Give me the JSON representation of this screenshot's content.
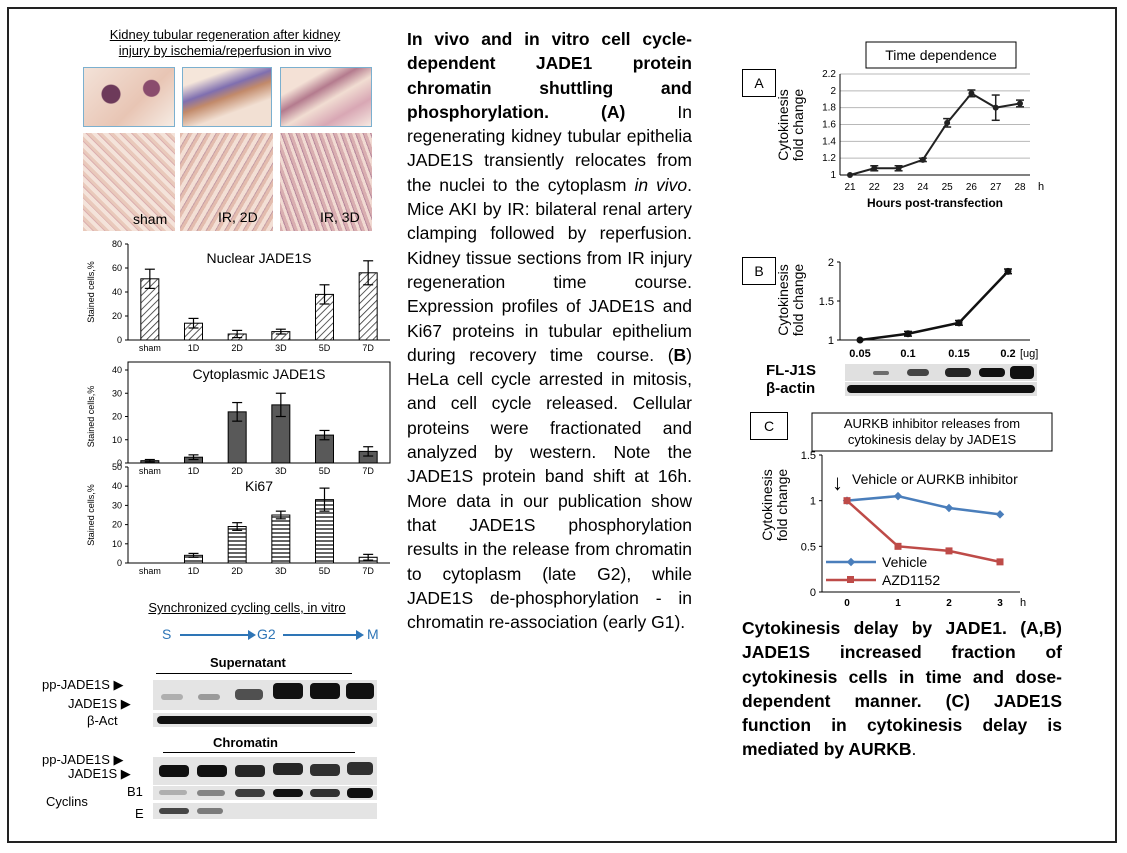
{
  "left": {
    "kidney_heading_line1": "Kidney tubular regeneration after kidney",
    "kidney_heading_line2": "injury by ischemia/reperfusion in vivo",
    "tissue_labels": [
      "sham",
      "IR, 2D",
      "IR, 3D"
    ],
    "sync_heading": "Synchronized cycling cells, in vitro",
    "phase_s": "S",
    "phase_g2": "G2",
    "phase_m": "M",
    "supernatant_label": "Supernatant",
    "chromatin_label": "Chromatin",
    "blot_labels": {
      "pp1": "pp-JADE1S",
      "j1": "JADE1S",
      "bact": "β-Act",
      "pp2": "pp-JADE1S",
      "j2": "JADE1S",
      "cyclins": "Cyclins",
      "b1": "B1",
      "e": "E"
    },
    "arrow_glyph": "▶"
  },
  "middle": {
    "title": "In vivo and in vitro cell cycle-dependent JADE1 protein chromatin shuttling and phosphorylation.",
    "a_open": "(A)",
    "a_text": "In regenerating kidney tubular epithelia JADE1S transiently relocates from the nuclei to the cytoplasm",
    "in_vivo": "in vivo",
    "a_text2": ". Mice AKI by IR: bilateral renal artery clamping followed by reperfusion. Kidney tissue sections from IR injury regeneration time course. Expression profiles of JADE1S and Ki67 proteins in tubular epithelium during recovery time course. (",
    "b_letter": "B",
    "b_text": ") HeLa cell cycle arrested in mitosis, and cell cycle released. Cellular proteins were fractionated and analyzed by western. Note the JADE1S protein band shift at 16h. More data in our publication show that JADE1S phosphorylation results in the release from chromatin to cytoplasm (late G2), while JADE1S de-phosphorylation - in chromatin re-association (early G1)."
  },
  "right": {
    "panel_a_letter": "A",
    "panel_b_letter": "B",
    "panel_c_letter": "C",
    "blot_fl": "FL-J1S",
    "blot_actin": "β-actin",
    "c_annotation": "Vehicle or AURKB inhibitor",
    "down_arrow": "↓",
    "caption_1": "Cytokinesis delay by JADE1. (",
    "caption_ab": "A,B",
    "caption_2": ") JADE1S increased fraction of cytokinesis cells in time and dose-dependent manner. (",
    "caption_c": "C",
    "caption_3": ") JADE1S function in cytokinesis delay is mediated by AURKB",
    "caption_end": "."
  },
  "colors": {
    "vehicle": "#4a7ebb",
    "azd": "#be4b48",
    "bar_dark": "#595959",
    "phase_blue": "#2e75b6"
  },
  "chart_data": [
    {
      "type": "bar",
      "title": "Nuclear JADE1S",
      "ylabel": "Stained cells,%",
      "categories": [
        "sham",
        "1D",
        "2D",
        "3D",
        "5D",
        "7D"
      ],
      "values": [
        51,
        14,
        5,
        7,
        38,
        56
      ],
      "errors": [
        8,
        4,
        3,
        2,
        8,
        10
      ],
      "ylim": [
        0,
        80
      ],
      "yticks": [
        "0",
        "20",
        "40",
        "60",
        "80"
      ],
      "fill": "diagonal hatch"
    },
    {
      "type": "bar",
      "title": "Cytoplasmic JADE1S",
      "ylabel": "Stained cells,%",
      "categories": [
        "sham",
        "1D",
        "2D",
        "3D",
        "5D",
        "7D"
      ],
      "values": [
        1,
        2.5,
        22,
        25,
        12,
        5
      ],
      "errors": [
        0.5,
        1,
        4,
        5,
        2,
        2
      ],
      "ylim": [
        0,
        40
      ],
      "yticks": [
        "0",
        "10",
        "20",
        "30",
        "40"
      ],
      "fill": "solid dark gray"
    },
    {
      "type": "bar",
      "title": "Ki67",
      "ylabel": "Stained cells,%",
      "categories": [
        "sham",
        "1D",
        "2D",
        "3D",
        "5D",
        "7D"
      ],
      "values": [
        0,
        4,
        19,
        25,
        33,
        3
      ],
      "errors": [
        0,
        1,
        2,
        2,
        6,
        1.5
      ],
      "ylim": [
        0,
        50
      ],
      "yticks": [
        "0",
        "10",
        "20",
        "30",
        "40",
        "50"
      ],
      "fill": "horizontal stripes"
    },
    {
      "type": "line",
      "title": "Time dependence",
      "ylabel": "Cytokinesis fold change",
      "xlabel": "Hours post-transfection",
      "x": [
        21,
        22,
        23,
        24,
        25,
        26,
        27,
        28
      ],
      "x_unit": "h",
      "values": [
        1,
        1.08,
        1.08,
        1.18,
        1.62,
        1.97,
        1.8,
        1.85
      ],
      "errors": [
        0,
        0.03,
        0.03,
        0.02,
        0.05,
        0.04,
        0.15,
        0.04
      ],
      "ylim": [
        1,
        2.2
      ],
      "yticks": [
        "1",
        "1.2",
        "1.4",
        "1.6",
        "1.8",
        "2",
        "2.2"
      ],
      "grid": true
    },
    {
      "type": "line",
      "title": "",
      "ylabel": "Cytokinesis fold change",
      "x": [
        "0.05",
        "0.1",
        "0.15",
        "0.2"
      ],
      "x_unit": "[ug]",
      "values": [
        1,
        1.08,
        1.22,
        1.88
      ],
      "errors": [
        0,
        0.03,
        0.03,
        0.03
      ],
      "ylim": [
        1,
        2
      ],
      "yticks": [
        "1",
        "1.5",
        "2"
      ]
    },
    {
      "type": "line",
      "title": "AURKB inhibitor releases from cytokinesis delay by JADE1S",
      "ylabel": "Cytokinesis fold change",
      "x": [
        0,
        1,
        2,
        3
      ],
      "x_unit": "h",
      "series": [
        {
          "name": "Vehicle",
          "values": [
            1,
            1.05,
            0.92,
            0.85
          ]
        },
        {
          "name": "AZD1152",
          "values": [
            1,
            0.5,
            0.45,
            0.33
          ]
        }
      ],
      "ylim": [
        0,
        1.5
      ],
      "yticks": [
        "0",
        "0.5",
        "1",
        "1.5"
      ],
      "legend": "bottom-left"
    }
  ]
}
